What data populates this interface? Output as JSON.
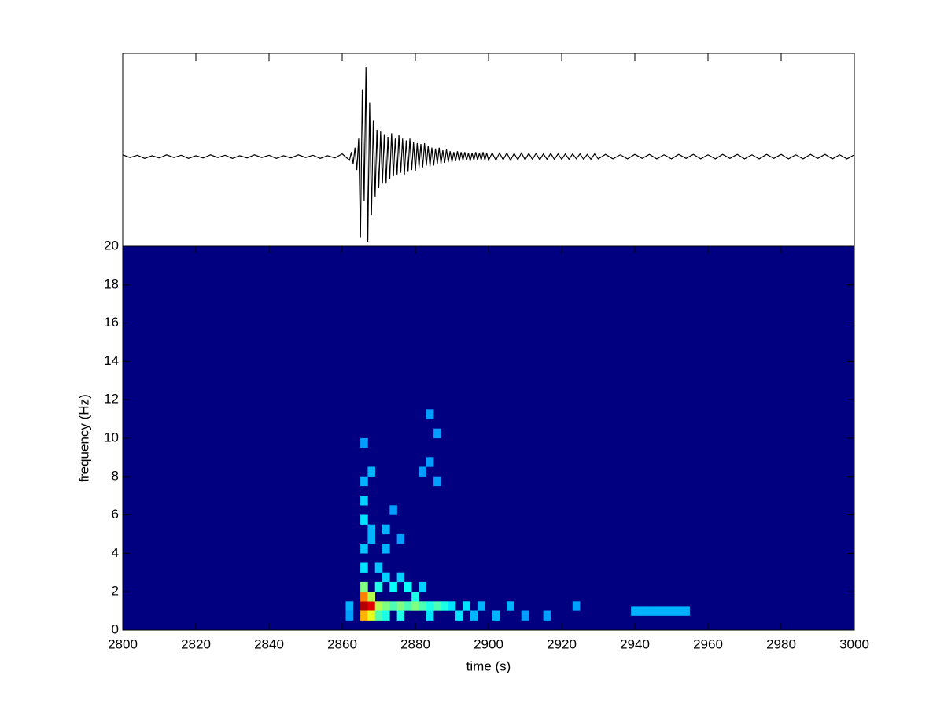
{
  "chart_data": [
    {
      "type": "line",
      "color": "#000000",
      "xlim": [
        2800,
        3000
      ],
      "xticks": [
        2800,
        2820,
        2840,
        2860,
        2880,
        2900,
        2920,
        2940,
        2960,
        2980,
        3000
      ],
      "ylim": [
        -1,
        1.15
      ],
      "x": [
        2800,
        2802,
        2804,
        2806,
        2808,
        2810,
        2812,
        2814,
        2816,
        2818,
        2820,
        2822,
        2824,
        2826,
        2828,
        2830,
        2832,
        2834,
        2836,
        2838,
        2840,
        2842,
        2844,
        2846,
        2848,
        2850,
        2852,
        2854,
        2856,
        2858,
        2860,
        2862,
        2862.5,
        2863,
        2863.5,
        2864,
        2864.5,
        2865,
        2865.5,
        2866,
        2866.5,
        2867,
        2867.5,
        2868,
        2868.5,
        2869,
        2869.5,
        2870,
        2870.5,
        2871,
        2871.5,
        2872,
        2872.5,
        2873,
        2873.5,
        2874,
        2874.5,
        2875,
        2875.5,
        2876,
        2876.5,
        2877,
        2877.5,
        2878,
        2878.5,
        2879,
        2879.5,
        2880,
        2880.5,
        2881,
        2881.5,
        2882,
        2882.5,
        2883,
        2883.5,
        2884,
        2884.5,
        2885,
        2885.5,
        2886,
        2886.5,
        2887,
        2887.5,
        2888,
        2888.5,
        2889,
        2889.5,
        2890,
        2890.5,
        2891,
        2891.5,
        2892,
        2892.5,
        2893,
        2893.5,
        2894,
        2894.5,
        2895,
        2895.5,
        2896,
        2896.5,
        2897,
        2897.5,
        2898,
        2898.5,
        2899,
        2899.5,
        2900,
        2901,
        2902,
        2903,
        2904,
        2905,
        2906,
        2907,
        2908,
        2909,
        2910,
        2911,
        2912,
        2913,
        2914,
        2915,
        2916,
        2917,
        2918,
        2919,
        2920,
        2921,
        2922,
        2923,
        2924,
        2925,
        2926,
        2927,
        2928,
        2929,
        2930,
        2932,
        2934,
        2936,
        2938,
        2940,
        2942,
        2944,
        2946,
        2948,
        2950,
        2952,
        2954,
        2956,
        2958,
        2960,
        2962,
        2964,
        2966,
        2968,
        2970,
        2972,
        2974,
        2976,
        2978,
        2980,
        2982,
        2984,
        2986,
        2988,
        2990,
        2992,
        2994,
        2996,
        2998,
        3000
      ],
      "values": [
        0.02,
        -0.01,
        0.015,
        -0.02,
        0.01,
        -0.015,
        0.02,
        -0.01,
        0.015,
        -0.02,
        0.01,
        -0.015,
        0.02,
        -0.01,
        0.015,
        -0.02,
        0.01,
        -0.015,
        0.02,
        -0.01,
        0.015,
        -0.02,
        0.01,
        -0.015,
        0.02,
        -0.01,
        0.015,
        -0.02,
        0.01,
        -0.015,
        0.03,
        -0.04,
        0.05,
        -0.08,
        0.1,
        -0.15,
        0.2,
        -0.9,
        0.75,
        -0.5,
        1.0,
        -0.95,
        0.6,
        -0.65,
        0.4,
        -0.45,
        0.3,
        -0.35,
        0.28,
        -0.3,
        0.25,
        -0.3,
        0.22,
        -0.25,
        0.26,
        -0.22,
        0.2,
        -0.2,
        0.24,
        -0.18,
        0.2,
        -0.2,
        0.18,
        -0.17,
        0.2,
        -0.15,
        0.16,
        -0.16,
        0.15,
        -0.12,
        0.14,
        -0.12,
        0.15,
        -0.1,
        0.12,
        -0.11,
        0.1,
        -0.1,
        0.09,
        -0.08,
        0.1,
        -0.08,
        0.07,
        -0.07,
        0.08,
        -0.06,
        0.06,
        -0.06,
        0.05,
        -0.05,
        0.06,
        -0.05,
        0.05,
        -0.04,
        0.05,
        -0.04,
        0.04,
        -0.05,
        0.04,
        -0.04,
        0.05,
        -0.04,
        0.04,
        -0.04,
        0.05,
        -0.04,
        0.04,
        -0.04,
        0.04,
        -0.04,
        0.04,
        -0.035,
        0.04,
        -0.04,
        0.035,
        -0.035,
        0.04,
        -0.035,
        0.035,
        -0.03,
        0.035,
        -0.035,
        0.03,
        -0.03,
        0.035,
        -0.03,
        0.03,
        -0.03,
        0.03,
        -0.03,
        0.03,
        -0.025,
        0.03,
        -0.03,
        0.025,
        -0.03,
        0.03,
        -0.025,
        0.025,
        -0.025,
        0.02,
        -0.025,
        0.025,
        -0.02,
        0.025,
        -0.025,
        0.02,
        -0.025,
        0.025,
        -0.02,
        0.025,
        -0.025,
        0.02,
        -0.025,
        0.025,
        -0.02,
        0.025,
        -0.025,
        0.02,
        -0.025,
        0.025,
        -0.02,
        0.025,
        -0.025,
        0.02,
        -0.025,
        0.025,
        -0.02,
        0.025,
        -0.025,
        0.02,
        -0.025,
        0.02
      ]
    },
    {
      "type": "heatmap",
      "colormap": "jet",
      "clim": [
        0,
        1
      ],
      "xlabel": "time (s)",
      "ylabel": "frequency (Hz)",
      "xlim": [
        2800,
        3000
      ],
      "xticks": [
        2800,
        2820,
        2840,
        2860,
        2880,
        2900,
        2920,
        2940,
        2960,
        2980,
        3000
      ],
      "ylim": [
        0,
        20
      ],
      "yticks": [
        0,
        2,
        4,
        6,
        8,
        10,
        12,
        14,
        16,
        18,
        20
      ],
      "x": [
        2866,
        2868,
        2866,
        2866,
        2868,
        2866,
        2868,
        2870,
        2870,
        2872,
        2872,
        2874,
        2876,
        2876,
        2878,
        2880,
        2880,
        2882,
        2884,
        2884,
        2886,
        2888,
        2890,
        2892,
        2894,
        2896,
        2898,
        2902,
        2906,
        2910,
        2916,
        2924,
        2870,
        2874,
        2878,
        2882,
        2872,
        2876,
        2870,
        2866,
        2866,
        2868,
        2866,
        2866,
        2868,
        2872,
        2866,
        2868,
        2872,
        2876,
        2874,
        2866,
        2882,
        2884,
        2886,
        2884,
        2886,
        2940,
        2942,
        2944,
        2946,
        2948,
        2950,
        2952,
        2954,
        2862,
        2862
      ],
      "y": [
        1.25,
        1.25,
        1.75,
        0.75,
        0.75,
        2.25,
        1.75,
        1.25,
        0.75,
        1.25,
        0.75,
        1.25,
        1.25,
        0.75,
        1.25,
        1.25,
        1.75,
        1.25,
        1.25,
        0.75,
        1.25,
        1.25,
        1.25,
        0.75,
        1.25,
        0.75,
        1.25,
        0.75,
        1.25,
        0.75,
        0.75,
        1.25,
        2.25,
        2.25,
        2.25,
        2.25,
        2.75,
        2.75,
        3.25,
        3.25,
        4.25,
        4.75,
        5.75,
        6.75,
        5.25,
        5.25,
        7.75,
        8.25,
        4.25,
        4.75,
        6.25,
        9.75,
        8.25,
        8.75,
        10.25,
        11.25,
        7.75,
        1.0,
        1.0,
        1.0,
        1.0,
        1.0,
        1.0,
        1.0,
        1.0,
        1.25,
        0.75
      ],
      "values": [
        0.95,
        0.9,
        0.75,
        0.7,
        0.6,
        0.5,
        0.55,
        0.55,
        0.45,
        0.5,
        0.4,
        0.45,
        0.5,
        0.4,
        0.45,
        0.5,
        0.4,
        0.45,
        0.4,
        0.35,
        0.45,
        0.4,
        0.35,
        0.35,
        0.35,
        0.3,
        0.3,
        0.3,
        0.3,
        0.28,
        0.28,
        0.28,
        0.4,
        0.38,
        0.38,
        0.33,
        0.33,
        0.33,
        0.32,
        0.35,
        0.32,
        0.3,
        0.35,
        0.33,
        0.3,
        0.3,
        0.3,
        0.3,
        0.3,
        0.28,
        0.28,
        0.28,
        0.28,
        0.28,
        0.28,
        0.28,
        0.28,
        0.3,
        0.3,
        0.3,
        0.3,
        0.3,
        0.3,
        0.3,
        0.3,
        0.3,
        0.28
      ]
    }
  ]
}
